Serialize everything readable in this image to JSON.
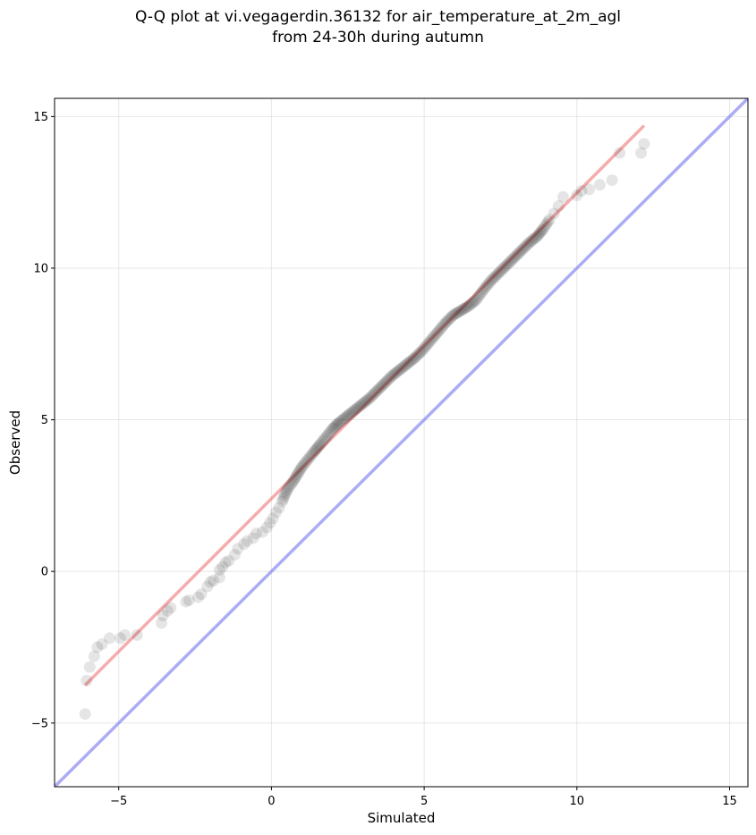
{
  "chart_data": {
    "type": "scatter",
    "title": "Q-Q plot at vi.vegagerdin.36132 for air_temperature_at_2m_agl",
    "subtitle": "from 24-30h during autumn",
    "xlabel": "Simulated",
    "ylabel": "Observed",
    "xlim": [
      -7.1,
      15.6
    ],
    "ylim": [
      -7.1,
      15.6
    ],
    "xticks": [
      -5,
      0,
      5,
      10,
      15
    ],
    "yticks": [
      -5,
      0,
      5,
      10,
      15
    ],
    "xtick_labels": [
      "−5",
      "0",
      "5",
      "10",
      "15"
    ],
    "ytick_labels": [
      "−5",
      "0",
      "5",
      "10",
      "15"
    ],
    "grid": true,
    "colors": {
      "points": "#000000",
      "fit_line": "#f08080",
      "identity_line": "#8080f0"
    },
    "fit_line": {
      "x": [
        -6.1,
        12.2
      ],
      "y": [
        -3.75,
        14.7
      ]
    },
    "identity_line": {
      "x": [
        -7.1,
        15.6
      ],
      "y": [
        -7.1,
        15.6
      ]
    },
    "points": [
      [
        -6.1,
        -4.7
      ],
      [
        -6.05,
        -3.6
      ],
      [
        -5.95,
        -3.15
      ],
      [
        -5.8,
        -2.8
      ],
      [
        -5.7,
        -2.5
      ],
      [
        -5.55,
        -2.4
      ],
      [
        -5.3,
        -2.2
      ],
      [
        -4.95,
        -2.2
      ],
      [
        -4.8,
        -2.1
      ],
      [
        -4.4,
        -2.1
      ],
      [
        -3.6,
        -1.7
      ],
      [
        -3.55,
        -1.45
      ],
      [
        -3.4,
        -1.3
      ],
      [
        -3.3,
        -1.2
      ],
      [
        -2.8,
        -1.0
      ],
      [
        -2.7,
        -0.95
      ],
      [
        -2.4,
        -0.85
      ],
      [
        -2.3,
        -0.75
      ],
      [
        -2.1,
        -0.5
      ],
      [
        -2.0,
        -0.35
      ],
      [
        -1.9,
        -0.3
      ],
      [
        -1.7,
        -0.2
      ],
      [
        -1.7,
        0.05
      ],
      [
        -1.6,
        0.15
      ],
      [
        -1.5,
        0.3
      ],
      [
        -1.4,
        0.35
      ],
      [
        -1.2,
        0.55
      ],
      [
        -1.1,
        0.75
      ],
      [
        -0.9,
        0.9
      ],
      [
        -0.8,
        1.0
      ],
      [
        -0.6,
        1.1
      ],
      [
        -0.5,
        1.25
      ],
      [
        -0.3,
        1.3
      ],
      [
        -0.15,
        1.45
      ],
      [
        -0.05,
        1.6
      ],
      [
        0.05,
        1.75
      ],
      [
        0.15,
        1.95
      ],
      [
        0.25,
        2.1
      ],
      [
        0.35,
        2.3
      ],
      [
        0.45,
        2.55
      ],
      [
        0.55,
        2.75
      ],
      [
        0.7,
        2.95
      ],
      [
        0.85,
        3.2
      ],
      [
        1.0,
        3.45
      ],
      [
        1.2,
        3.7
      ],
      [
        1.4,
        3.95
      ],
      [
        1.6,
        4.2
      ],
      [
        1.8,
        4.45
      ],
      [
        2.0,
        4.7
      ],
      [
        2.2,
        4.9
      ],
      [
        2.45,
        5.1
      ],
      [
        2.7,
        5.3
      ],
      [
        2.95,
        5.5
      ],
      [
        3.2,
        5.7
      ],
      [
        3.45,
        5.95
      ],
      [
        3.7,
        6.2
      ],
      [
        3.95,
        6.45
      ],
      [
        4.2,
        6.65
      ],
      [
        4.45,
        6.85
      ],
      [
        4.7,
        7.05
      ],
      [
        4.95,
        7.3
      ],
      [
        5.2,
        7.6
      ],
      [
        5.45,
        7.9
      ],
      [
        5.7,
        8.2
      ],
      [
        5.95,
        8.45
      ],
      [
        6.2,
        8.6
      ],
      [
        6.45,
        8.75
      ],
      [
        6.7,
        8.95
      ],
      [
        6.95,
        9.3
      ],
      [
        7.2,
        9.6
      ],
      [
        7.45,
        9.85
      ],
      [
        7.7,
        10.1
      ],
      [
        7.95,
        10.35
      ],
      [
        8.2,
        10.6
      ],
      [
        8.45,
        10.85
      ],
      [
        8.7,
        11.05
      ],
      [
        8.9,
        11.3
      ],
      [
        9.1,
        11.6
      ],
      [
        9.25,
        11.8
      ],
      [
        9.4,
        12.05
      ],
      [
        9.55,
        12.35
      ],
      [
        10.0,
        12.4
      ],
      [
        10.15,
        12.55
      ],
      [
        10.4,
        12.6
      ],
      [
        10.75,
        12.75
      ],
      [
        11.15,
        12.9
      ],
      [
        11.4,
        13.8
      ],
      [
        12.1,
        13.8
      ],
      [
        12.2,
        14.1
      ]
    ]
  }
}
